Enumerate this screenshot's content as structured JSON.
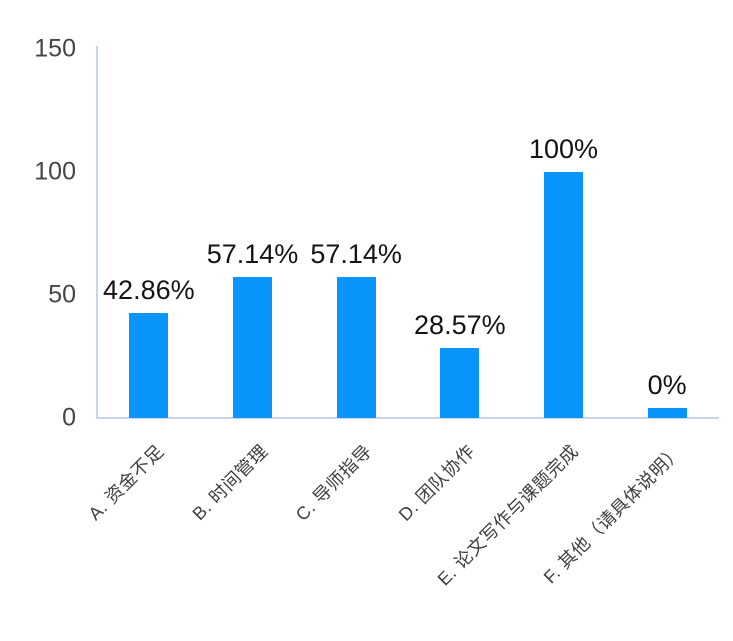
{
  "chart_data": {
    "type": "bar",
    "title": "",
    "xlabel": "",
    "ylabel": "",
    "categories": [
      "A. 资金不足",
      "B. 时间管理",
      "C. 导师指导",
      "D. 团队协作",
      "E. 论文写作与课题完成",
      "F. 其他（请具体说明）"
    ],
    "values": [
      42.86,
      57.14,
      57.14,
      28.57,
      100,
      0
    ],
    "data_labels": [
      "42.86%",
      "57.14%",
      "57.14%",
      "28.57%",
      "100%",
      "0%"
    ],
    "y_ticks": [
      0,
      50,
      100,
      150
    ],
    "y_tick_labels": [
      "0",
      "50",
      "100",
      "150"
    ],
    "ylim": [
      0,
      150
    ],
    "grid": "off",
    "legend": "none",
    "category_label_rotation_deg": 45,
    "colors": {
      "bar": "#0996fc",
      "axis_line": "#c9d4ef",
      "tick_label": "#454545",
      "value_label": "#141414",
      "category_label": "#3f3f3f",
      "background": "#ffffff"
    }
  }
}
